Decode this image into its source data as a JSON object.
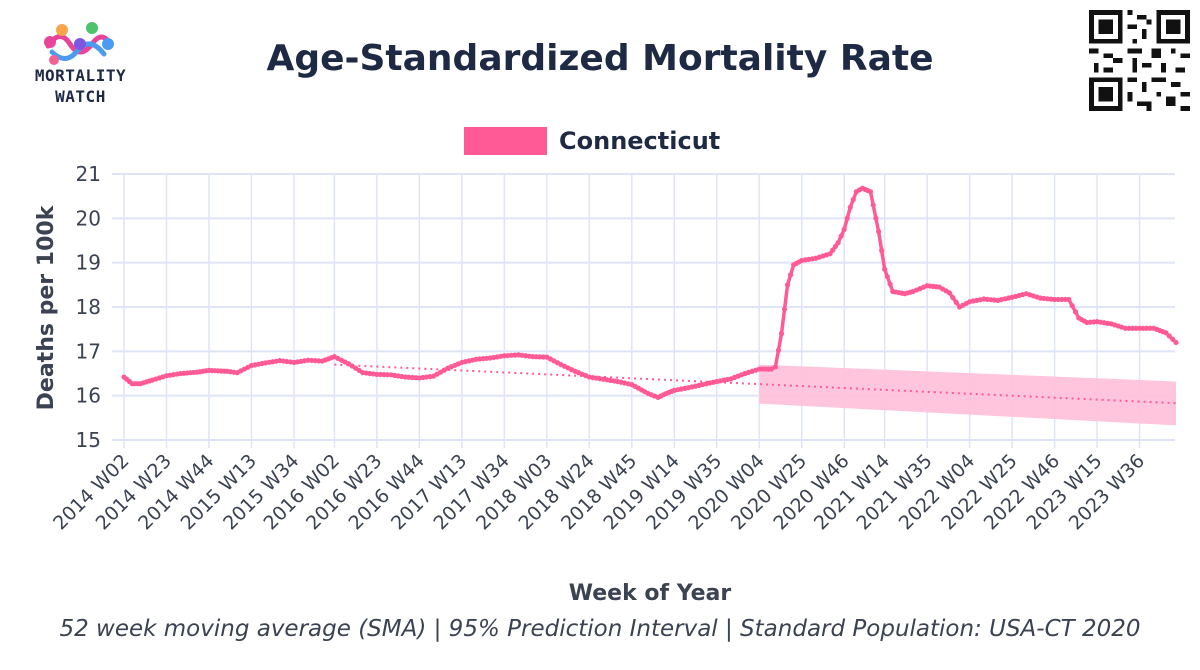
{
  "brand": {
    "logo_line1": "MORTALITY",
    "logo_line2": "WATCH",
    "logo_colors": [
      "#f8a44c",
      "#e8459a",
      "#4fc36c",
      "#4b9bf0",
      "#7e57e0",
      "#f06292"
    ]
  },
  "title": "Age-Standardized Mortality Rate",
  "legend": {
    "label": "Connecticut",
    "color": "#ff5a96"
  },
  "footer": "52 week moving average (SMA) | 95% Prediction Interval | Standard Population: USA-CT 2020",
  "colors": {
    "series": "#ff5a96",
    "band": "#ffc2db",
    "grid": "#dfe4f7",
    "axis_text": "#3b4252",
    "title": "#1e2a44"
  },
  "chart_data": {
    "type": "line",
    "title": "Age-Standardized Mortality Rate",
    "xlabel": "Week of Year",
    "ylabel": "Deaths per 100k",
    "ylim": [
      15,
      21
    ],
    "yticks": [
      15,
      16,
      17,
      18,
      19,
      20,
      21
    ],
    "xticks": [
      "2014 W02",
      "2014 W23",
      "2014 W44",
      "2015 W13",
      "2015 W34",
      "2016 W02",
      "2016 W23",
      "2016 W44",
      "2017 W13",
      "2017 W34",
      "2018 W03",
      "2018 W24",
      "2018 W45",
      "2019 W14",
      "2019 W35",
      "2020 W04",
      "2020 W25",
      "2020 W46",
      "2021 W14",
      "2021 W35",
      "2022 W04",
      "2022 W25",
      "2022 W46",
      "2023 W15",
      "2023 W36"
    ],
    "grid": true,
    "legend_position": "top-center",
    "series": [
      {
        "name": "Connecticut",
        "kind": "observed",
        "color": "#ff5a96",
        "points": [
          [
            "2014 W02",
            16.42
          ],
          [
            "2014 W06",
            16.27
          ],
          [
            "2014 W10",
            16.27
          ],
          [
            "2014 W16",
            16.35
          ],
          [
            "2014 W23",
            16.45
          ],
          [
            "2014 W30",
            16.5
          ],
          [
            "2014 W38",
            16.53
          ],
          [
            "2014 W44",
            16.57
          ],
          [
            "2015 W01",
            16.55
          ],
          [
            "2015 W06",
            16.52
          ],
          [
            "2015 W13",
            16.68
          ],
          [
            "2015 W20",
            16.74
          ],
          [
            "2015 W27",
            16.79
          ],
          [
            "2015 W34",
            16.75
          ],
          [
            "2015 W41",
            16.8
          ],
          [
            "2015 W48",
            16.78
          ],
          [
            "2016 W02",
            16.88
          ],
          [
            "2016 W09",
            16.72
          ],
          [
            "2016 W16",
            16.52
          ],
          [
            "2016 W23",
            16.48
          ],
          [
            "2016 W30",
            16.47
          ],
          [
            "2016 W37",
            16.42
          ],
          [
            "2016 W44",
            16.4
          ],
          [
            "2016 W51",
            16.44
          ],
          [
            "2017 W06",
            16.62
          ],
          [
            "2017 W13",
            16.75
          ],
          [
            "2017 W20",
            16.82
          ],
          [
            "2017 W27",
            16.85
          ],
          [
            "2017 W34",
            16.9
          ],
          [
            "2017 W41",
            16.92
          ],
          [
            "2017 W48",
            16.88
          ],
          [
            "2018 W03",
            16.87
          ],
          [
            "2018 W10",
            16.7
          ],
          [
            "2018 W17",
            16.55
          ],
          [
            "2018 W24",
            16.42
          ],
          [
            "2018 W31",
            16.37
          ],
          [
            "2018 W38",
            16.32
          ],
          [
            "2018 W45",
            16.25
          ],
          [
            "2019 W01",
            16.05
          ],
          [
            "2019 W06",
            15.96
          ],
          [
            "2019 W10",
            16.05
          ],
          [
            "2019 W14",
            16.12
          ],
          [
            "2019 W21",
            16.18
          ],
          [
            "2019 W28",
            16.25
          ],
          [
            "2019 W35",
            16.32
          ],
          [
            "2019 W42",
            16.38
          ],
          [
            "2019 W49",
            16.5
          ],
          [
            "2020 W04",
            16.6
          ],
          [
            "2020 W10",
            16.6
          ],
          [
            "2020 W12",
            16.65
          ],
          [
            "2020 W15",
            17.4
          ],
          [
            "2020 W18",
            18.5
          ],
          [
            "2020 W21",
            18.95
          ],
          [
            "2020 W25",
            19.05
          ],
          [
            "2020 W32",
            19.1
          ],
          [
            "2020 W39",
            19.2
          ],
          [
            "2020 W43",
            19.45
          ],
          [
            "2020 W46",
            19.75
          ],
          [
            "2020 W49",
            20.25
          ],
          [
            "2020 W52",
            20.6
          ],
          [
            "2021 W03",
            20.68
          ],
          [
            "2021 W07",
            20.6
          ],
          [
            "2021 W11",
            19.7
          ],
          [
            "2021 W14",
            18.85
          ],
          [
            "2021 W18",
            18.35
          ],
          [
            "2021 W24",
            18.3
          ],
          [
            "2021 W28",
            18.35
          ],
          [
            "2021 W35",
            18.48
          ],
          [
            "2021 W41",
            18.45
          ],
          [
            "2021 W46",
            18.32
          ],
          [
            "2021 W51",
            18.0
          ],
          [
            "2022 W04",
            18.12
          ],
          [
            "2022 W11",
            18.18
          ],
          [
            "2022 W18",
            18.15
          ],
          [
            "2022 W25",
            18.22
          ],
          [
            "2022 W32",
            18.3
          ],
          [
            "2022 W39",
            18.2
          ],
          [
            "2022 W46",
            18.17
          ],
          [
            "2023 W01",
            18.17
          ],
          [
            "2023 W06",
            17.75
          ],
          [
            "2023 W10",
            17.65
          ],
          [
            "2023 W15",
            17.67
          ],
          [
            "2023 W22",
            17.62
          ],
          [
            "2023 W29",
            17.52
          ],
          [
            "2023 W36",
            17.52
          ],
          [
            "2023 W43",
            17.52
          ],
          [
            "2023 W49",
            17.42
          ],
          [
            "2024 W02",
            17.2
          ]
        ]
      },
      {
        "name": "",
        "kind": "baseline",
        "style": "dotted",
        "color": "#ff5a96",
        "points": [
          [
            "2016 W02",
            16.7
          ],
          [
            "2020 W04",
            16.26
          ],
          [
            "2024 W02",
            15.83
          ]
        ]
      }
    ],
    "prediction_interval": {
      "x": [
        "2020 W04",
        "2024 W02"
      ],
      "lower": [
        15.82,
        15.33
      ],
      "upper": [
        16.7,
        16.32
      ]
    }
  }
}
